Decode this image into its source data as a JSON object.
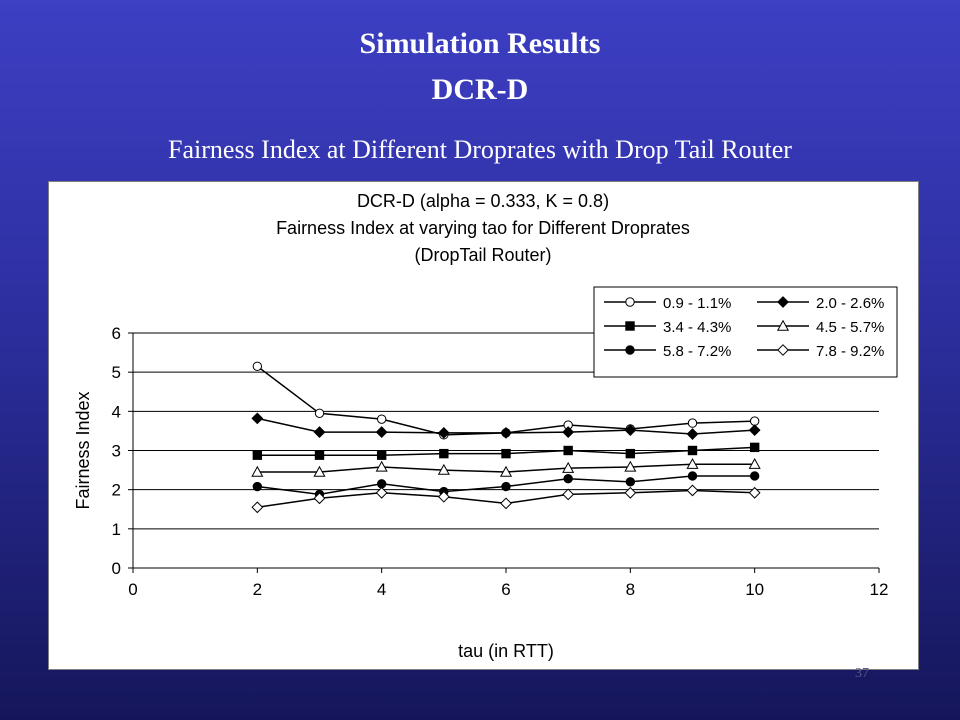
{
  "slide": {
    "title_line1": "Simulation Results",
    "title_line2": "DCR-D",
    "subtitle": "Fairness Index at Different Droprates with Drop Tail Router",
    "page_number": "37"
  },
  "chart_data": {
    "type": "line",
    "title_lines": [
      "DCR-D (alpha = 0.333, K = 0.8)",
      "Fairness Index at varying tao for Different  Droprates",
      "(DropTail Router)"
    ],
    "xlabel": "tau (in RTT)",
    "ylabel": "Fairness Index",
    "xlim": [
      0,
      12
    ],
    "ylim": [
      0,
      6
    ],
    "xticks": [
      0,
      2,
      4,
      6,
      8,
      10,
      12
    ],
    "yticks": [
      0,
      1,
      2,
      3,
      4,
      5,
      6
    ],
    "grid": "horizontal major gridlines",
    "legend_position": "top-right",
    "x": [
      2,
      3,
      4,
      5,
      6,
      7,
      8,
      9,
      10
    ],
    "series": [
      {
        "name": "0.9 - 1.1%",
        "marker": "open-circle",
        "values": [
          5.15,
          3.95,
          3.8,
          3.4,
          3.45,
          3.65,
          3.55,
          3.7,
          3.75
        ]
      },
      {
        "name": "2.0 - 2.6%",
        "marker": "filled-diamond",
        "values": [
          3.82,
          3.47,
          3.47,
          3.45,
          3.45,
          3.47,
          3.52,
          3.42,
          3.52
        ]
      },
      {
        "name": "3.4 - 4.3%",
        "marker": "filled-square",
        "values": [
          2.88,
          2.88,
          2.88,
          2.92,
          2.92,
          3.0,
          2.92,
          3.0,
          3.08
        ]
      },
      {
        "name": "4.5 - 5.7%",
        "marker": "open-triangle",
        "values": [
          2.45,
          2.45,
          2.58,
          2.5,
          2.45,
          2.55,
          2.58,
          2.65,
          2.65
        ]
      },
      {
        "name": "5.8 - 7.2%",
        "marker": "filled-circle",
        "values": [
          2.08,
          1.88,
          2.15,
          1.95,
          2.08,
          2.28,
          2.2,
          2.35,
          2.35
        ]
      },
      {
        "name": "7.8 - 9.2%",
        "marker": "open-diamond",
        "values": [
          1.55,
          1.78,
          1.92,
          1.82,
          1.65,
          1.88,
          1.92,
          1.98,
          1.92
        ]
      }
    ]
  }
}
